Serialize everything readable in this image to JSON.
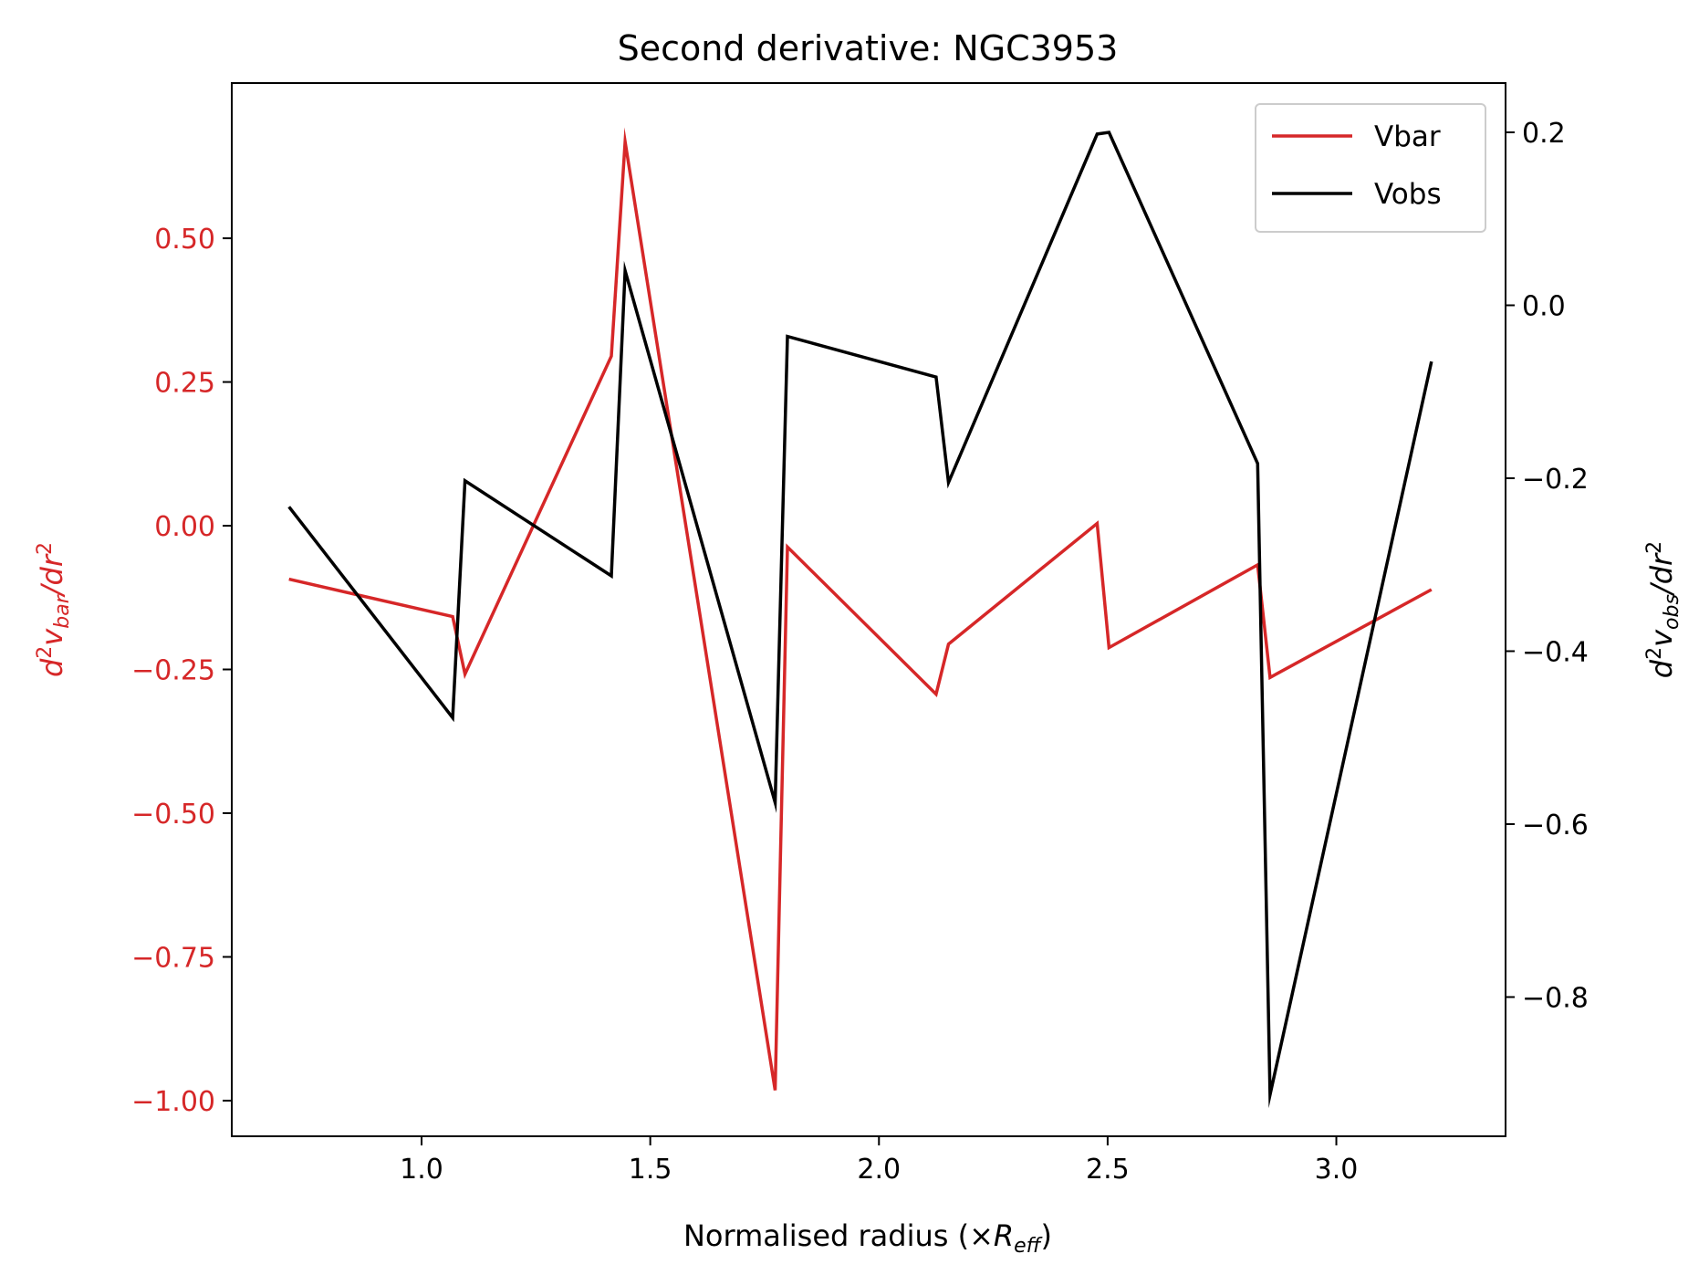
{
  "chart_data": {
    "type": "line",
    "title": "Second derivative: NGC3953",
    "xlabel": "Normalised radius (×R_eff)",
    "ylabel_left": "d²v_bar/dr²",
    "ylabel_right": "d²v_obs/dr²",
    "xlim": [
      0.585,
      3.37
    ],
    "ylim_left": [
      -1.062,
      0.77
    ],
    "ylim_right": [
      -0.961,
      0.257
    ],
    "x_ticks": [
      "1.0",
      "1.5",
      "2.0",
      "2.5",
      "3.0"
    ],
    "y_left_ticks": [
      "0.50",
      "0.25",
      "0.00",
      "−0.25",
      "−0.50",
      "−0.75",
      "−1.00"
    ],
    "y_right_ticks": [
      "0.2",
      "0.0",
      "−0.2",
      "−0.4",
      "−0.6",
      "−0.8"
    ],
    "legend_position": "upper-right",
    "grid": false,
    "colors": {
      "vbar": "#d62728",
      "vobs": "#000000",
      "left_axis_text": "#d62728",
      "right_axis_text": "#000000"
    },
    "series": [
      {
        "name": "Vbar",
        "axis": "left",
        "x": [
          0.71,
          1.068,
          1.095,
          1.415,
          1.445,
          1.773,
          1.8,
          2.125,
          2.152,
          2.477,
          2.503,
          2.828,
          2.855,
          3.208
        ],
        "y": [
          -0.093,
          -0.158,
          -0.258,
          0.295,
          0.668,
          -0.982,
          -0.037,
          -0.293,
          -0.206,
          0.004,
          -0.212,
          -0.068,
          -0.264,
          -0.111
        ]
      },
      {
        "name": "Vobs",
        "axis": "right",
        "x": [
          0.71,
          1.068,
          1.095,
          1.415,
          1.445,
          1.773,
          1.8,
          2.125,
          2.152,
          2.477,
          2.503,
          2.828,
          2.855,
          3.208
        ],
        "y": [
          -0.233,
          -0.477,
          -0.203,
          -0.313,
          0.04,
          -0.575,
          -0.036,
          -0.083,
          -0.205,
          0.198,
          0.2,
          -0.183,
          -0.913,
          -0.065
        ]
      }
    ]
  }
}
